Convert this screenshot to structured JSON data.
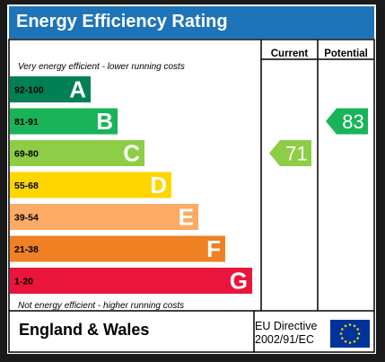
{
  "header": {
    "title": "Energy Efficiency Rating"
  },
  "columns": {
    "current": "Current",
    "potential": "Potential"
  },
  "notes": {
    "top": "Very energy efficient - lower running costs",
    "bottom": "Not energy efficient - higher running costs"
  },
  "footer": {
    "region": "England & Wales",
    "directive_line1": "EU Directive",
    "directive_line2": "2002/91/EC"
  },
  "colors": {
    "header": "#1e74b9",
    "A": "#008054",
    "B": "#19b459",
    "C": "#8dce46",
    "D": "#ffd500",
    "E": "#fcaa65",
    "F": "#ef8023",
    "G": "#e9153b",
    "eu_blue": "#003399",
    "eu_star": "#ffcc00"
  },
  "chart_data": {
    "type": "bar",
    "bands": [
      {
        "letter": "A",
        "range": "92-100"
      },
      {
        "letter": "B",
        "range": "81-91"
      },
      {
        "letter": "C",
        "range": "69-80"
      },
      {
        "letter": "D",
        "range": "55-68"
      },
      {
        "letter": "E",
        "range": "39-54"
      },
      {
        "letter": "F",
        "range": "21-38"
      },
      {
        "letter": "G",
        "range": "1-20"
      }
    ],
    "current": {
      "value": 71,
      "band": "C"
    },
    "potential": {
      "value": 83,
      "band": "B"
    }
  }
}
